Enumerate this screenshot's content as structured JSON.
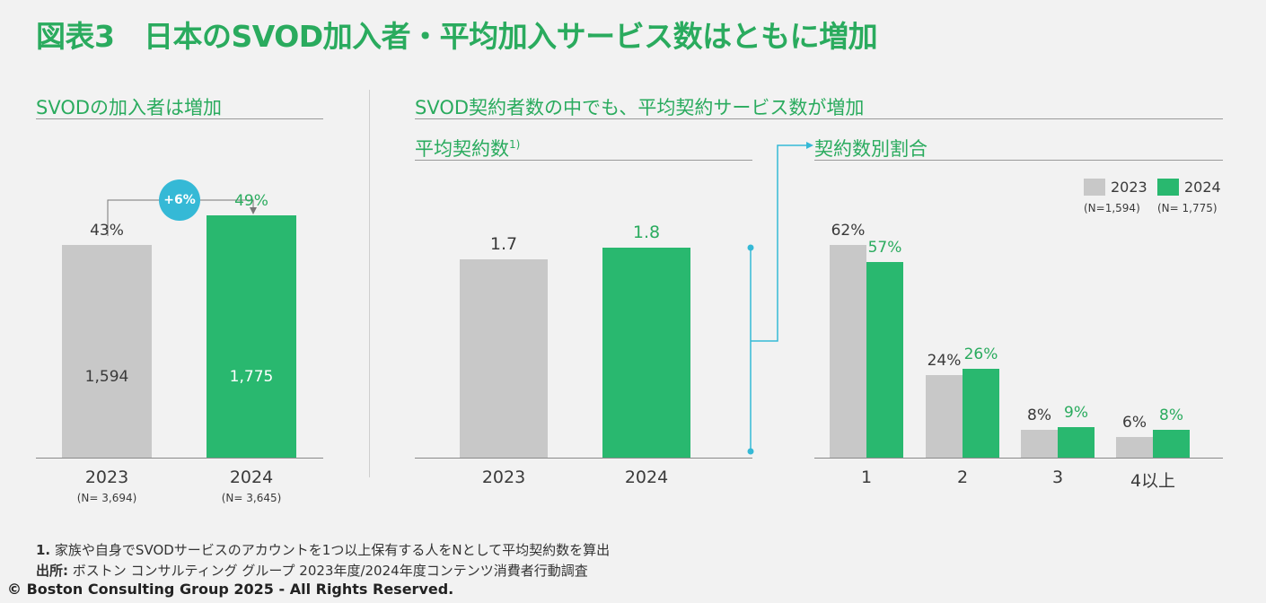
{
  "title": "図表3　日本のSVOD加入者・平均加入サービス数はともに増加",
  "left_panel": {
    "heading": "SVODの加入者は増加",
    "growth_badge": "+6%"
  },
  "right_panel": {
    "heading": "SVOD契約者数の中でも、平均契約サービス数が増加",
    "avg_heading": "平均契約数",
    "avg_footnote_mark": "1)",
    "dist_heading": "契約数別割合"
  },
  "legend": {
    "items": [
      {
        "label": "2023",
        "n": "(N=1,594)",
        "color": "#c8c8c8"
      },
      {
        "label": "2024",
        "n": "(N= 1,775)",
        "color": "#29b86f"
      }
    ]
  },
  "chart_data": [
    {
      "type": "bar",
      "title": "SVODの加入者は増加",
      "categories": [
        "2023",
        "2024"
      ],
      "category_n": [
        "(N= 3,694)",
        "(N= 3,645)"
      ],
      "values": [
        43,
        49
      ],
      "value_labels": [
        "43%",
        "49%"
      ],
      "inner_labels": [
        "1,594",
        "1,775"
      ],
      "ylim": [
        0,
        100
      ],
      "colors": [
        "#c8c8c8",
        "#29b86f"
      ]
    },
    {
      "type": "bar",
      "title": "平均契約数",
      "categories": [
        "2023",
        "2024"
      ],
      "values": [
        1.7,
        1.8
      ],
      "value_labels": [
        "1.7",
        "1.8"
      ],
      "colors": [
        "#c8c8c8",
        "#29b86f"
      ]
    },
    {
      "type": "bar",
      "title": "契約数別割合",
      "categories": [
        "1",
        "2",
        "3",
        "4以上"
      ],
      "series": [
        {
          "name": "2023",
          "values": [
            62,
            24,
            8,
            6
          ],
          "labels": [
            "62%",
            "24%",
            "8%",
            "6%"
          ],
          "color": "#c8c8c8"
        },
        {
          "name": "2024",
          "values": [
            57,
            26,
            9,
            8
          ],
          "labels": [
            "57%",
            "26%",
            "9%",
            "8%"
          ],
          "color": "#29b86f"
        }
      ],
      "ylim": [
        0,
        65
      ]
    }
  ],
  "footnotes": {
    "note1_num": "1.",
    "note1": "家族や自身でSVODサービスのアカウントを1つ以上保有する人をNとして平均契約数を算出",
    "source_label": "出所:",
    "source": "ボストン コンサルティング グループ 2023年度/2024年度コンテンツ消費者行動調査",
    "copyright": "© Boston Consulting Group 2025 - All Rights Reserved."
  }
}
